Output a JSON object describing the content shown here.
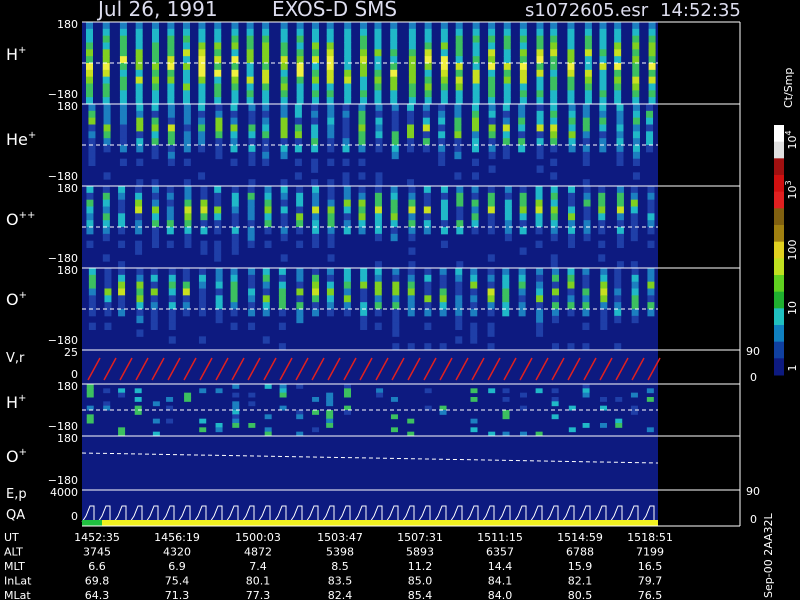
{
  "header": {
    "date": "Jul 26, 1991",
    "instrument": "EXOS-D SMS",
    "file": "s1072605.esr",
    "time": "14:52:35"
  },
  "panels": [
    {
      "label": "H",
      "sup": "+",
      "ticks": [
        "180",
        "−180"
      ]
    },
    {
      "label": "He",
      "sup": "+",
      "ticks": [
        "180",
        "−180"
      ]
    },
    {
      "label": "O",
      "sup": "++",
      "ticks": [
        "180",
        "−180"
      ]
    },
    {
      "label": "O",
      "sup": "+",
      "ticks": [
        "180",
        "−180"
      ]
    },
    {
      "label": "V,r",
      "ticks": [
        "25",
        "0"
      ],
      "right_ticks": [
        "90",
        "0"
      ]
    },
    {
      "label": "H",
      "sup": "+",
      "ticks": [
        "180",
        "−180"
      ]
    },
    {
      "label": "O",
      "sup": "+",
      "ticks": [
        "180",
        "−180"
      ]
    },
    {
      "label": "E,p",
      "ticks": [
        "4000",
        "0"
      ],
      "right_ticks": [
        "90",
        "0"
      ]
    },
    {
      "label": "QA"
    }
  ],
  "colorbar": {
    "unit": "Ct/Smp",
    "labels": [
      {
        "base": "10",
        "sup": "4"
      },
      {
        "base": "10",
        "sup": "3"
      },
      {
        "base": "100"
      },
      {
        "base": "10"
      },
      {
        "base": "1"
      }
    ]
  },
  "table": {
    "rows": [
      {
        "label": "UT",
        "values": [
          "1452:35",
          "1456:19",
          "1500:03",
          "1503:47",
          "1507:31",
          "1511:15",
          "1514:59",
          "1518:51"
        ]
      },
      {
        "label": "ALT",
        "values": [
          "3745",
          "4320",
          "4872",
          "5398",
          "5893",
          "6357",
          "6788",
          "7199"
        ]
      },
      {
        "label": "MLT",
        "values": [
          "6.6",
          "6.9",
          "7.4",
          "8.5",
          "11.2",
          "14.4",
          "15.9",
          "16.5"
        ]
      },
      {
        "label": "InLat",
        "values": [
          "69.8",
          "75.4",
          "80.1",
          "83.5",
          "85.0",
          "84.1",
          "82.1",
          "79.7"
        ]
      },
      {
        "label": "MLat",
        "values": [
          "64.3",
          "71.3",
          "77.3",
          "82.4",
          "85.4",
          "84.0",
          "80.5",
          "76.5"
        ]
      }
    ]
  },
  "footer": "Sep-00 2AA32L"
}
